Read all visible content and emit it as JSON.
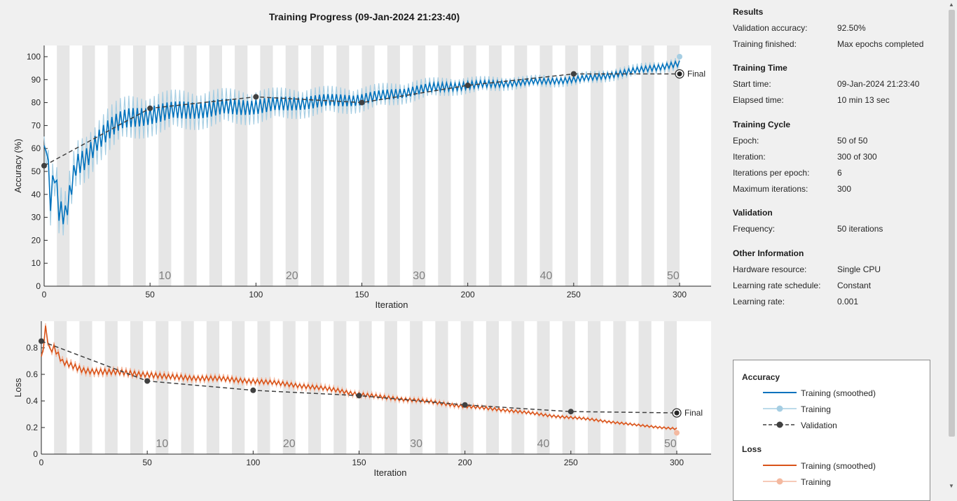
{
  "title": "Training Progress (09-Jan-2024 21:23:40)",
  "chart_data": [
    {
      "type": "line",
      "name": "accuracy",
      "xlabel": "Iteration",
      "ylabel": "Accuracy (%)",
      "xlim": [
        0,
        300
      ],
      "ylim": [
        0,
        100
      ],
      "xticks": [
        0,
        50,
        100,
        150,
        200,
        250,
        300
      ],
      "yticks": [
        0,
        10,
        20,
        30,
        40,
        50,
        60,
        70,
        80,
        90,
        100
      ],
      "grid": false,
      "epoch_labels": [
        "10",
        "20",
        "30",
        "40",
        "50"
      ],
      "final_label": "Final",
      "series": [
        {
          "name": "Training (smoothed)",
          "color": "#0072bd",
          "x": [
            0,
            1,
            3,
            5,
            7,
            10,
            15,
            20,
            25,
            30,
            35,
            40,
            45,
            50,
            60,
            70,
            80,
            90,
            100,
            110,
            120,
            130,
            140,
            150,
            160,
            170,
            180,
            190,
            200,
            210,
            220,
            230,
            240,
            250,
            260,
            270,
            280,
            290,
            300
          ],
          "y": [
            58,
            64,
            38,
            50,
            33,
            30,
            52,
            56,
            64,
            68,
            71,
            73,
            74,
            75,
            76,
            77,
            77.5,
            78,
            78.5,
            79,
            80,
            80.5,
            81,
            81.5,
            83,
            84.5,
            86,
            87,
            87.5,
            88,
            88.5,
            89,
            89.5,
            90,
            91,
            92.5,
            94,
            95.5,
            97
          ]
        },
        {
          "name": "Training",
          "color": "#a6cee3",
          "x": [
            0,
            300
          ],
          "y": [
            null,
            100
          ]
        },
        {
          "name": "Validation",
          "color": "#404040",
          "x": [
            0,
            50,
            100,
            150,
            200,
            250,
            300
          ],
          "y": [
            52.5,
            77.5,
            82.5,
            80,
            87.5,
            92.5,
            92.5
          ]
        }
      ]
    },
    {
      "type": "line",
      "name": "loss",
      "xlabel": "Iteration",
      "ylabel": "Loss",
      "xlim": [
        0,
        300
      ],
      "ylim": [
        0,
        1
      ],
      "xticks": [
        0,
        50,
        100,
        150,
        200,
        250,
        300
      ],
      "yticks": [
        0,
        0.2,
        0.4,
        0.6,
        0.8
      ],
      "grid": false,
      "epoch_labels": [
        "10",
        "20",
        "30",
        "40",
        "50"
      ],
      "final_label": "Final",
      "series": [
        {
          "name": "Training (smoothed)",
          "color": "#d95319",
          "x": [
            0,
            1,
            2,
            4,
            6,
            10,
            15,
            20,
            30,
            40,
            50,
            60,
            80,
            100,
            120,
            140,
            150,
            160,
            180,
            200,
            220,
            240,
            260,
            280,
            300
          ],
          "y": [
            0.72,
            0.82,
            0.95,
            0.78,
            0.8,
            0.69,
            0.66,
            0.63,
            0.62,
            0.61,
            0.6,
            0.58,
            0.57,
            0.55,
            0.52,
            0.48,
            0.45,
            0.43,
            0.4,
            0.36,
            0.33,
            0.29,
            0.26,
            0.22,
            0.19
          ]
        },
        {
          "name": "Training",
          "color": "#f4b9a0",
          "x": [
            300
          ],
          "y": [
            0.16
          ]
        },
        {
          "name": "Validation",
          "color": "#404040",
          "x": [
            0,
            50,
            100,
            150,
            200,
            250,
            300
          ],
          "y": [
            0.85,
            0.55,
            0.48,
            0.44,
            0.37,
            0.32,
            0.31
          ]
        }
      ]
    }
  ],
  "results": {
    "heading": "Results",
    "validation_accuracy_label": "Validation accuracy:",
    "validation_accuracy": "92.50%",
    "training_finished_label": "Training finished:",
    "training_finished": "Max epochs completed"
  },
  "training_time": {
    "heading": "Training Time",
    "start_label": "Start time:",
    "start": "09-Jan-2024 21:23:40",
    "elapsed_label": "Elapsed time:",
    "elapsed": "10 min 13 sec"
  },
  "training_cycle": {
    "heading": "Training Cycle",
    "epoch_label": "Epoch:",
    "epoch": "50 of 50",
    "iteration_label": "Iteration:",
    "iteration": "300 of 300",
    "ipe_label": "Iterations per epoch:",
    "ipe": "6",
    "max_iter_label": "Maximum iterations:",
    "max_iter": "300"
  },
  "validation": {
    "heading": "Validation",
    "frequency_label": "Frequency:",
    "frequency": "50 iterations"
  },
  "other": {
    "heading": "Other Information",
    "hardware_label": "Hardware resource:",
    "hardware": "Single CPU",
    "lr_schedule_label": "Learning rate schedule:",
    "lr_schedule": "Constant",
    "lr_label": "Learning rate:",
    "lr": "0.001"
  },
  "legend": {
    "accuracy_heading": "Accuracy",
    "loss_heading": "Loss",
    "acc_items": [
      "Training (smoothed)",
      "Training",
      "Validation"
    ],
    "loss_items": [
      "Training (smoothed)",
      "Training"
    ]
  }
}
